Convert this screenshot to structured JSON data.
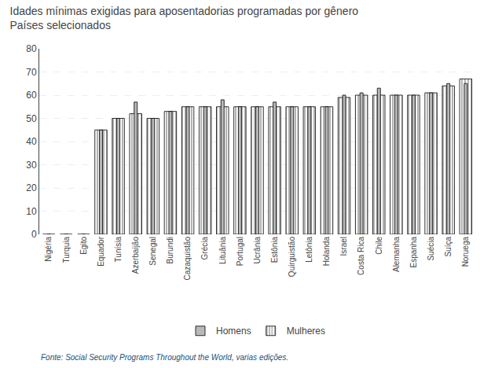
{
  "chart_data": {
    "type": "bar",
    "title": "Idades mínimas exigidas para aposentadorias programadas por gênero",
    "subtitle": "Países selecionados",
    "categories": [
      "Nigéria",
      "Turquia",
      "Egito",
      "Equador",
      "Tunísia",
      "Azerbaijão",
      "Senegal",
      "Burundi",
      "Cazaquistão",
      "Grécia",
      "Lituânia",
      "Portugal",
      "Ucrânia",
      "Estônia",
      "Quirguistão",
      "Letônia",
      "Holanda",
      "Israel",
      "Costa Rica",
      "Chile",
      "Alemanha",
      "Espanha",
      "Suécia",
      "Suíça",
      "Noruega"
    ],
    "series": [
      {
        "name": "Mulheres",
        "color": "#ffffff",
        "values": [
          0,
          0,
          0,
          45,
          50,
          52,
          50,
          53,
          55,
          55,
          55,
          55,
          55,
          55,
          55,
          55,
          55,
          59,
          60,
          60,
          60,
          60,
          61,
          64,
          67
        ]
      },
      {
        "name": "Homens",
        "color": "#b8b8b8",
        "values": [
          0,
          0,
          0,
          45,
          50,
          57,
          50,
          53,
          55,
          55,
          58,
          55,
          55,
          57,
          55,
          55,
          55,
          60,
          61,
          63,
          60,
          60,
          61,
          65,
          65
        ]
      }
    ],
    "ylim": [
      0,
      80
    ],
    "yticks": [
      0,
      10,
      20,
      30,
      40,
      50,
      60,
      70,
      80
    ],
    "grid": true,
    "legend": "bottom",
    "annotations": [
      "Fonte: Social Security Programs Throughout the World, varias edições."
    ]
  }
}
